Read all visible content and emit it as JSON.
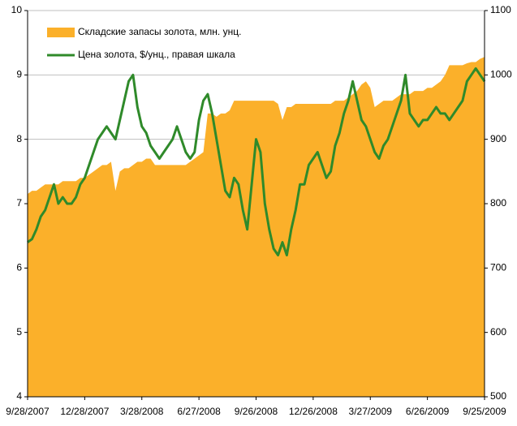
{
  "chart_data": {
    "type": "area-line",
    "categories": [
      "9/28/2007",
      null,
      null,
      null,
      null,
      null,
      null,
      null,
      null,
      null,
      null,
      null,
      null,
      "12/28/2007",
      null,
      null,
      null,
      null,
      null,
      null,
      null,
      null,
      null,
      null,
      null,
      null,
      "3/28/2008",
      null,
      null,
      null,
      null,
      null,
      null,
      null,
      null,
      null,
      null,
      null,
      null,
      "6/27/2008",
      null,
      null,
      null,
      null,
      null,
      null,
      null,
      null,
      null,
      null,
      null,
      null,
      "9/26/2008",
      null,
      null,
      null,
      null,
      null,
      null,
      null,
      null,
      null,
      null,
      null,
      null,
      "12/26/2008",
      null,
      null,
      null,
      null,
      null,
      null,
      null,
      null,
      null,
      null,
      null,
      null,
      "3/27/2009",
      null,
      null,
      null,
      null,
      null,
      null,
      null,
      null,
      null,
      null,
      null,
      null,
      "6/26/2009",
      null,
      null,
      null,
      null,
      null,
      null,
      null,
      null,
      null,
      null,
      null,
      null,
      "9/25/2009"
    ],
    "series": [
      {
        "name": "Складские запасы золота, млн. унц.",
        "type": "area",
        "color": "#fbb02a",
        "values": [
          7.15,
          7.2,
          7.2,
          7.25,
          7.3,
          7.3,
          7.3,
          7.3,
          7.35,
          7.35,
          7.35,
          7.35,
          7.4,
          7.4,
          7.45,
          7.5,
          7.55,
          7.6,
          7.6,
          7.65,
          7.2,
          7.5,
          7.55,
          7.55,
          7.6,
          7.65,
          7.65,
          7.7,
          7.7,
          7.6,
          7.6,
          7.6,
          7.6,
          7.6,
          7.6,
          7.6,
          7.6,
          7.65,
          7.7,
          7.75,
          7.8,
          8.4,
          8.4,
          8.35,
          8.4,
          8.4,
          8.45,
          8.6,
          8.6,
          8.6,
          8.6,
          8.6,
          8.6,
          8.6,
          8.6,
          8.6,
          8.6,
          8.55,
          8.3,
          8.5,
          8.5,
          8.55,
          8.55,
          8.55,
          8.55,
          8.55,
          8.55,
          8.55,
          8.55,
          8.55,
          8.6,
          8.6,
          8.6,
          8.65,
          8.7,
          8.75,
          8.85,
          8.9,
          8.8,
          8.5,
          8.55,
          8.6,
          8.6,
          8.6,
          8.65,
          8.7,
          8.7,
          8.7,
          8.75,
          8.75,
          8.75,
          8.8,
          8.8,
          8.85,
          8.9,
          9.0,
          9.15,
          9.15,
          9.15,
          9.15,
          9.18,
          9.2,
          9.2,
          9.25,
          9.28
        ]
      },
      {
        "name": "Цена золота, $/унц., правая шкала",
        "type": "line",
        "axis": "y2",
        "color": "#2f8a2a",
        "values": [
          740,
          745,
          760,
          780,
          790,
          810,
          830,
          800,
          810,
          800,
          800,
          810,
          830,
          840,
          860,
          880,
          900,
          910,
          920,
          910,
          900,
          930,
          960,
          990,
          1000,
          950,
          920,
          910,
          890,
          880,
          870,
          880,
          890,
          900,
          920,
          900,
          880,
          870,
          880,
          930,
          960,
          970,
          940,
          900,
          860,
          820,
          810,
          840,
          830,
          790,
          760,
          830,
          900,
          880,
          800,
          760,
          730,
          720,
          740,
          720,
          760,
          790,
          830,
          830,
          860,
          870,
          880,
          860,
          840,
          850,
          890,
          910,
          940,
          960,
          990,
          960,
          930,
          920,
          900,
          880,
          870,
          890,
          900,
          920,
          940,
          960,
          1000,
          940,
          930,
          920,
          930,
          930,
          940,
          950,
          940,
          940,
          930,
          940,
          950,
          960,
          990,
          1000,
          1010,
          1000,
          990
        ]
      }
    ],
    "ylim": [
      4,
      10
    ],
    "yticks": [
      4,
      5,
      6,
      7,
      8,
      9,
      10
    ],
    "y2lim": [
      500,
      1100
    ],
    "y2ticks": [
      500,
      600,
      700,
      800,
      900,
      1000,
      1100
    ],
    "grid": true,
    "legend": "top-left"
  }
}
